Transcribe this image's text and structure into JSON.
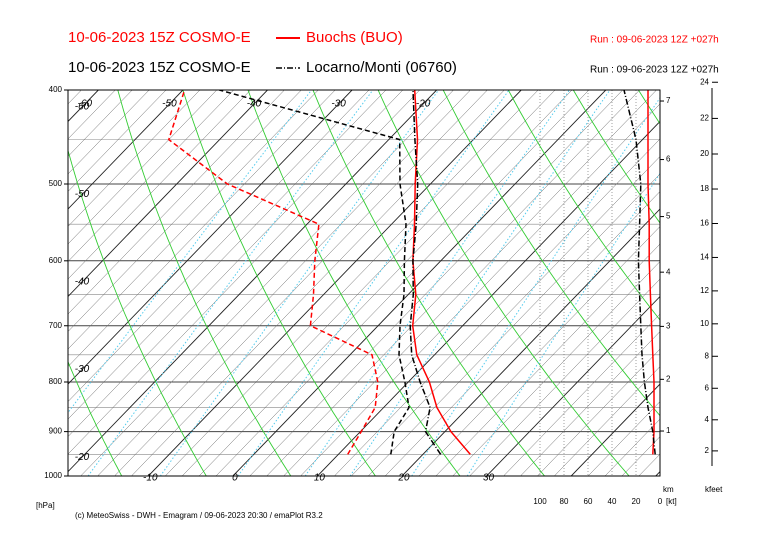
{
  "chart_data": [
    {
      "type": "emagram",
      "stations": [
        {
          "model": "10-06-2023 15Z COSMO-E",
          "name": "Buochs (BUO)",
          "run": "Run : 09-06-2023 12Z +027h",
          "color": "#ff0000",
          "temperature": [
            25.6,
            20.7,
            16.3,
            12.5,
            7.9,
            4.1,
            0.9,
            -3.3,
            -7.3,
            -11.8,
            -16.6,
            -22.6
          ],
          "dewpoint": [
            11.1,
            10.1,
            9.0,
            6.4,
            2.6,
            -8,
            -11.2,
            -14.9,
            -18.6,
            -34,
            -46,
            -49.8
          ]
        },
        {
          "model": "10-06-2023 15Z COSMO-E",
          "name": "Locarno/Monti (06760)",
          "run": "Run : 09-06-2023 12Z +027h",
          "color": "#000000",
          "temperature": [
            22.1,
            17.7,
            15.5,
            11.4,
            7.3,
            3.8,
            0.6,
            -3.3,
            -7.1,
            -11.5,
            -16.9,
            -22.8
          ],
          "dewpoint": [
            16.2,
            14,
            13,
            9.6,
            5.8,
            2.6,
            -0.5,
            -4.3,
            -8.3,
            -13.6,
            -18.7,
            -45.7
          ]
        }
      ],
      "pressure": [
        950,
        900,
        850,
        800,
        750,
        700,
        650,
        600,
        550,
        500,
        450,
        400
      ],
      "ylim": [
        1000,
        400
      ],
      "log_y": true,
      "yticks": [
        400,
        500,
        600,
        700,
        800,
        900,
        1000
      ],
      "y_label": "[hPa]",
      "xlim": [
        -19.5,
        50.5
      ],
      "xticks": [
        -10,
        0,
        10,
        20,
        30
      ],
      "left_isotherm_labels": [
        -60,
        -50,
        -40,
        -30,
        -20
      ],
      "top_isotherm_labels": [
        -60,
        -50,
        -40,
        -30,
        -20
      ],
      "km_ticks": [
        1,
        2,
        3,
        4,
        5,
        6,
        7
      ],
      "km_label": "km",
      "kfeet_ticks": [
        2,
        4,
        6,
        8,
        10,
        12,
        14,
        16,
        18,
        20,
        22,
        24
      ],
      "kfeet_label": "kfeet",
      "footer": "(c) MeteoSwiss - DWH - Emagram / 09-06-2023 20:30 / emaPlot R3.2"
    },
    {
      "type": "wind-profile",
      "series": [
        {
          "name": "Buochs (BUO)",
          "color": "#ff0000",
          "values": [
            6,
            5,
            5,
            5,
            6,
            7,
            8,
            9,
            9,
            10,
            10,
            10
          ]
        },
        {
          "name": "Locarno/Monti (06760)",
          "color": "#000000",
          "values": [
            4,
            6,
            10,
            13,
            15,
            16,
            17,
            18,
            17,
            16,
            20,
            30
          ]
        }
      ],
      "pressure": [
        950,
        900,
        850,
        800,
        750,
        700,
        650,
        600,
        550,
        500,
        450,
        400
      ],
      "xlim": [
        100,
        0
      ],
      "xticks": [
        100,
        80,
        60,
        40,
        20,
        0
      ],
      "x_label": "[kt]"
    }
  ]
}
